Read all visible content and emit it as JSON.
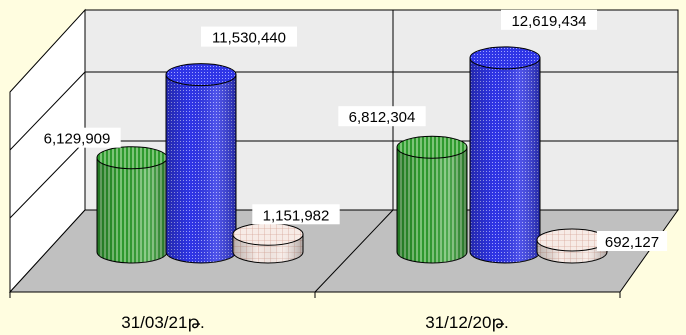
{
  "chart_data": {
    "type": "bar",
    "categories": [
      "31/03/21թ.",
      "31/12/20թ."
    ],
    "series": [
      {
        "values": [
          6129909,
          6812304
        ],
        "color": "#2e9a2e"
      },
      {
        "values": [
          11530440,
          12619434
        ],
        "color": "#2f35e6"
      },
      {
        "values": [
          1151982,
          692127
        ],
        "color": "#f4e2dc"
      }
    ],
    "data_labels": [
      [
        "6,129,909",
        "6,812,304"
      ],
      [
        "11,530,440",
        "12,619,434"
      ],
      [
        "1,151,982",
        "692,127"
      ]
    ],
    "grid": true,
    "legend": "none",
    "style": "3d-cylinder"
  }
}
